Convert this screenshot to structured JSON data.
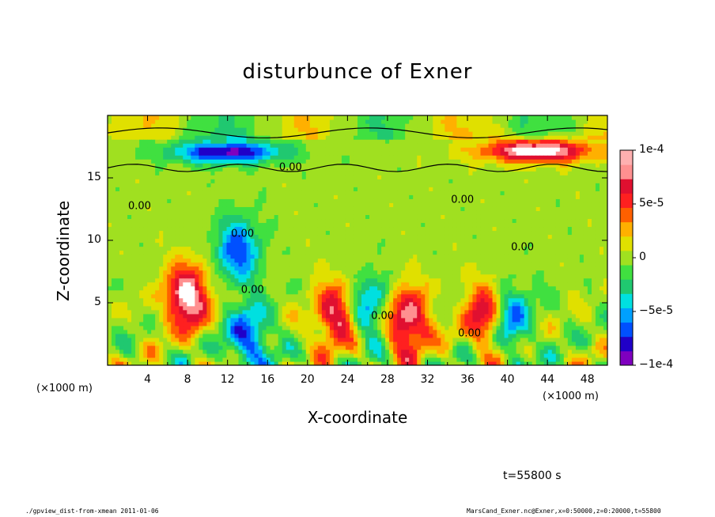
{
  "chart_data": {
    "type": "heatmap",
    "title": "disturbunce of Exner",
    "xlabel": "X-coordinate",
    "ylabel": "Z-coordinate",
    "x_unit": "(×1000 m)",
    "y_unit": "(×1000 m)",
    "xlim": [
      0,
      50
    ],
    "ylim": [
      0,
      20
    ],
    "x_ticks": [
      "4",
      "8",
      "12",
      "16",
      "20",
      "24",
      "28",
      "32",
      "36",
      "40",
      "44",
      "48"
    ],
    "x_tick_values": [
      4,
      8,
      12,
      16,
      20,
      24,
      28,
      32,
      36,
      40,
      44,
      48
    ],
    "y_ticks": [
      "5",
      "10",
      "15"
    ],
    "y_tick_values": [
      5,
      10,
      15
    ],
    "colorbar": {
      "min": -0.0001,
      "max": 0.0001,
      "labels": [
        "1e-4",
        "5e-5",
        "0",
        "−5e-5",
        "−1e-4"
      ],
      "label_values": [
        0.0001,
        5e-05,
        0,
        -5e-05,
        -0.0001
      ]
    },
    "contour_labels": [
      "0.00",
      "0.00",
      "0.00",
      "0.00",
      "0.00",
      "0.00",
      "0.00",
      "0.00"
    ],
    "time_label": "t=55800 s",
    "features": [
      {
        "type": "negative",
        "x": 12,
        "z": 17.1,
        "value": -9e-05
      },
      {
        "type": "positive",
        "x": 43,
        "z": 17.2,
        "value": 0.0001
      },
      {
        "type": "negative",
        "x": 13,
        "z": 9.2,
        "value": -7e-05
      },
      {
        "type": "positive",
        "x": 8,
        "z": 5.5,
        "value": 0.0001
      },
      {
        "type": "positive",
        "x": 23,
        "z": 4.0,
        "value": 8e-05
      },
      {
        "type": "positive",
        "x": 30,
        "z": 3.5,
        "value": 9e-05
      },
      {
        "type": "positive",
        "x": 38,
        "z": 4.0,
        "value": 9e-05
      },
      {
        "type": "negative",
        "x": 40,
        "z": 3.8,
        "value": -8e-05
      },
      {
        "type": "negative",
        "x": 14,
        "z": 2.2,
        "value": -7e-05
      },
      {
        "type": "negative",
        "x": 26,
        "z": 4.5,
        "value": -6e-05
      }
    ]
  },
  "footer": {
    "left": "./gpview_dist-from-xmean  2011-01-06",
    "right": "MarsCand_Exner.nc@Exner,x=0:50000,z=0:20000,t=55800"
  },
  "colors": {
    "scale": [
      "#7f00bf",
      "#2000c8",
      "#0050ff",
      "#00a0ff",
      "#00e0e0",
      "#20c870",
      "#40e040",
      "#a0e020",
      "#e0e000",
      "#ffb000",
      "#ff6000",
      "#ff2020",
      "#e01030",
      "#ff9090",
      "#ffffff"
    ]
  }
}
